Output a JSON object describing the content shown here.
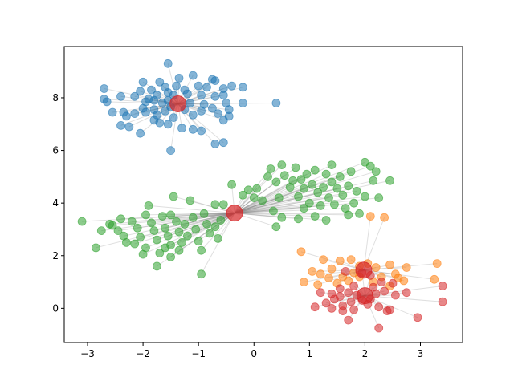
{
  "chart_data": {
    "type": "scatter",
    "title": "",
    "xlabel": "",
    "ylabel": "",
    "xlim": [
      -3.42,
      3.76
    ],
    "ylim": [
      -1.3,
      9.95
    ],
    "grid": false,
    "legend": null,
    "xticks": [
      -3,
      -2,
      -1,
      0,
      1,
      2,
      3
    ],
    "yticks": [
      0,
      2,
      4,
      6,
      8
    ],
    "xtick_labels": [
      "−3",
      "−2",
      "−1",
      "0",
      "1",
      "2",
      "3"
    ],
    "ytick_labels": [
      "0",
      "2",
      "4",
      "6",
      "8"
    ],
    "link_color": "#808080",
    "series": [
      {
        "color": "#1f77b4",
        "center": [
          -1.37,
          7.77
        ],
        "points": [
          [
            -1.55,
            9.3
          ],
          [
            -2.7,
            8.35
          ],
          [
            -2.0,
            8.6
          ],
          [
            -1.7,
            8.6
          ],
          [
            -1.35,
            8.75
          ],
          [
            -1.1,
            8.85
          ],
          [
            -0.75,
            8.7
          ],
          [
            -0.7,
            8.65
          ],
          [
            -0.4,
            8.45
          ],
          [
            -0.2,
            8.4
          ],
          [
            -2.05,
            8.25
          ],
          [
            -1.85,
            8.3
          ],
          [
            -1.6,
            8.4
          ],
          [
            -1.4,
            8.45
          ],
          [
            -1.25,
            8.3
          ],
          [
            -1.0,
            8.45
          ],
          [
            -0.85,
            8.4
          ],
          [
            -0.55,
            8.35
          ],
          [
            -2.4,
            8.05
          ],
          [
            -2.15,
            8.05
          ],
          [
            -1.9,
            7.95
          ],
          [
            -1.75,
            8.1
          ],
          [
            -1.55,
            8.2
          ],
          [
            -1.45,
            8.1
          ],
          [
            -1.2,
            8.15
          ],
          [
            -0.95,
            8.1
          ],
          [
            -0.7,
            8.05
          ],
          [
            -0.55,
            8.1
          ],
          [
            -2.7,
            7.95
          ],
          [
            -2.65,
            7.85
          ],
          [
            -1.95,
            7.85
          ],
          [
            -1.8,
            7.9
          ],
          [
            -1.65,
            7.8
          ],
          [
            -1.55,
            7.9
          ],
          [
            -1.15,
            7.8
          ],
          [
            -0.9,
            7.75
          ],
          [
            -0.5,
            7.8
          ],
          [
            -0.2,
            7.8
          ],
          [
            0.4,
            7.8
          ],
          [
            -2.0,
            7.6
          ],
          [
            -1.8,
            7.55
          ],
          [
            -1.6,
            7.5
          ],
          [
            -1.5,
            7.65
          ],
          [
            -1.25,
            7.55
          ],
          [
            -0.75,
            7.6
          ],
          [
            -0.45,
            7.55
          ],
          [
            -2.55,
            7.45
          ],
          [
            -2.35,
            7.45
          ],
          [
            -2.15,
            7.4
          ],
          [
            -1.95,
            7.45
          ],
          [
            -1.75,
            7.35
          ],
          [
            -1.45,
            7.25
          ],
          [
            -1.1,
            7.35
          ],
          [
            -0.95,
            7.5
          ],
          [
            -0.65,
            7.4
          ],
          [
            -0.55,
            7.15
          ],
          [
            -0.45,
            7.3
          ],
          [
            -2.3,
            7.3
          ],
          [
            -1.8,
            7.15
          ],
          [
            -2.4,
            6.95
          ],
          [
            -2.25,
            6.9
          ],
          [
            -2.05,
            6.65
          ],
          [
            -1.7,
            7.05
          ],
          [
            -1.55,
            7.0
          ],
          [
            -1.3,
            6.85
          ],
          [
            -1.1,
            6.8
          ],
          [
            -0.95,
            6.75
          ],
          [
            -0.7,
            6.25
          ],
          [
            -0.55,
            6.3
          ],
          [
            -1.5,
            6.0
          ]
        ]
      },
      {
        "color": "#2ca02c",
        "center": [
          -0.35,
          3.62
        ],
        "points": [
          [
            -3.1,
            3.3
          ],
          [
            -2.85,
            2.3
          ],
          [
            -2.75,
            2.95
          ],
          [
            -2.6,
            3.2
          ],
          [
            -2.55,
            3.15
          ],
          [
            -2.4,
            3.4
          ],
          [
            -2.35,
            2.75
          ],
          [
            -2.3,
            2.5
          ],
          [
            -2.2,
            3.3
          ],
          [
            -2.1,
            3.05
          ],
          [
            -2.05,
            2.7
          ],
          [
            -1.95,
            3.55
          ],
          [
            -1.95,
            2.3
          ],
          [
            -1.9,
            3.9
          ],
          [
            -1.85,
            3.25
          ],
          [
            -1.8,
            2.95
          ],
          [
            -1.75,
            2.6
          ],
          [
            -1.7,
            2.1
          ],
          [
            -1.65,
            3.5
          ],
          [
            -1.6,
            3.05
          ],
          [
            -1.55,
            2.75
          ],
          [
            -1.5,
            2.4
          ],
          [
            -1.5,
            3.55
          ],
          [
            -1.45,
            4.25
          ],
          [
            -1.4,
            3.3
          ],
          [
            -1.35,
            2.9
          ],
          [
            -1.3,
            2.5
          ],
          [
            -1.25,
            3.2
          ],
          [
            -1.2,
            2.75
          ],
          [
            -1.15,
            4.1
          ],
          [
            -1.1,
            3.45
          ],
          [
            -1.05,
            3.0
          ],
          [
            -1.0,
            2.55
          ],
          [
            -0.95,
            2.2
          ],
          [
            -0.9,
            3.6
          ],
          [
            -0.85,
            3.2
          ],
          [
            -0.8,
            2.85
          ],
          [
            -0.7,
            3.1
          ],
          [
            -0.65,
            2.65
          ],
          [
            -0.6,
            3.35
          ],
          [
            -1.75,
            1.6
          ],
          [
            -1.5,
            1.95
          ],
          [
            -1.35,
            2.2
          ],
          [
            -0.95,
            1.3
          ],
          [
            -2.0,
            2.05
          ],
          [
            -2.15,
            2.45
          ],
          [
            -1.6,
            2.3
          ],
          [
            -2.45,
            2.95
          ],
          [
            -0.55,
            3.95
          ],
          [
            -0.4,
            4.7
          ],
          [
            -0.2,
            4.3
          ],
          [
            -0.1,
            4.5
          ],
          [
            0.0,
            4.2
          ],
          [
            0.05,
            4.55
          ],
          [
            0.15,
            4.1
          ],
          [
            0.25,
            5.0
          ],
          [
            0.3,
            5.3
          ],
          [
            0.4,
            4.8
          ],
          [
            0.45,
            4.2
          ],
          [
            0.5,
            5.45
          ],
          [
            0.55,
            5.05
          ],
          [
            0.65,
            4.6
          ],
          [
            0.7,
            4.85
          ],
          [
            0.75,
            5.35
          ],
          [
            0.8,
            4.25
          ],
          [
            0.85,
            4.9
          ],
          [
            0.9,
            4.55
          ],
          [
            0.95,
            5.1
          ],
          [
            1.0,
            4.0
          ],
          [
            1.05,
            4.7
          ],
          [
            1.1,
            5.25
          ],
          [
            1.15,
            4.4
          ],
          [
            1.2,
            3.9
          ],
          [
            1.25,
            4.6
          ],
          [
            1.3,
            5.1
          ],
          [
            1.35,
            4.2
          ],
          [
            1.4,
            4.8
          ],
          [
            1.45,
            3.95
          ],
          [
            1.5,
            4.55
          ],
          [
            1.55,
            5.0
          ],
          [
            1.6,
            4.3
          ],
          [
            1.65,
            3.8
          ],
          [
            1.7,
            4.65
          ],
          [
            1.75,
            5.2
          ],
          [
            1.8,
            4.0
          ],
          [
            1.85,
            4.45
          ],
          [
            1.9,
            3.6
          ],
          [
            2.0,
            4.25
          ],
          [
            2.1,
            5.4
          ],
          [
            2.15,
            4.85
          ],
          [
            2.25,
            4.2
          ],
          [
            2.45,
            4.85
          ],
          [
            2.2,
            5.2
          ],
          [
            1.3,
            3.35
          ],
          [
            1.1,
            3.5
          ],
          [
            0.8,
            3.4
          ],
          [
            0.5,
            3.45
          ],
          [
            0.4,
            3.1
          ],
          [
            0.35,
            3.7
          ],
          [
            -0.7,
            3.95
          ],
          [
            1.7,
            3.55
          ],
          [
            2.0,
            5.55
          ],
          [
            0.9,
            3.8
          ],
          [
            1.4,
            5.45
          ]
        ]
      },
      {
        "color": "#ff7f0e",
        "center": [
          1.98,
          1.45
        ],
        "points": [
          [
            2.1,
            3.5
          ],
          [
            2.35,
            3.45
          ],
          [
            0.85,
            2.15
          ],
          [
            1.25,
            1.85
          ],
          [
            1.55,
            1.8
          ],
          [
            1.75,
            1.85
          ],
          [
            1.9,
            1.6
          ],
          [
            2.05,
            1.7
          ],
          [
            2.2,
            1.55
          ],
          [
            2.45,
            1.65
          ],
          [
            2.75,
            1.55
          ],
          [
            3.3,
            1.7
          ],
          [
            0.9,
            1.0
          ],
          [
            1.05,
            1.4
          ],
          [
            1.2,
            1.3
          ],
          [
            1.35,
            1.15
          ],
          [
            1.4,
            1.5
          ],
          [
            1.6,
            1.2
          ],
          [
            1.7,
            1.05
          ],
          [
            1.8,
            1.35
          ],
          [
            2.3,
            1.2
          ],
          [
            2.55,
            1.3
          ],
          [
            2.7,
            1.05
          ],
          [
            3.25,
            1.1
          ],
          [
            1.15,
            0.9
          ],
          [
            1.5,
            0.95
          ],
          [
            2.15,
            1.0
          ],
          [
            2.45,
            0.85
          ],
          [
            2.6,
            1.15
          ],
          [
            1.9,
            1.2
          ]
        ]
      },
      {
        "color": "#d62728",
        "center": [
          2.0,
          0.48
        ],
        "points": [
          [
            1.65,
            1.4
          ],
          [
            1.95,
            1.35
          ],
          [
            2.1,
            1.25
          ],
          [
            2.3,
            1.0
          ],
          [
            2.5,
            0.95
          ],
          [
            3.4,
            0.85
          ],
          [
            1.2,
            0.6
          ],
          [
            1.4,
            0.55
          ],
          [
            1.55,
            0.75
          ],
          [
            1.7,
            0.6
          ],
          [
            1.8,
            0.85
          ],
          [
            1.85,
            0.5
          ],
          [
            2.15,
            0.8
          ],
          [
            2.2,
            0.55
          ],
          [
            2.35,
            0.65
          ],
          [
            2.55,
            0.5
          ],
          [
            2.75,
            0.6
          ],
          [
            3.4,
            0.25
          ],
          [
            1.3,
            0.2
          ],
          [
            1.45,
            0.35
          ],
          [
            1.6,
            0.1
          ],
          [
            1.75,
            0.25
          ],
          [
            1.95,
            0.3
          ],
          [
            2.05,
            0.15
          ],
          [
            2.25,
            0.05
          ],
          [
            2.45,
            -0.05
          ],
          [
            1.1,
            0.05
          ],
          [
            1.4,
            0.0
          ],
          [
            1.6,
            -0.1
          ],
          [
            1.8,
            -0.05
          ],
          [
            2.4,
            -0.1
          ],
          [
            1.7,
            -0.45
          ],
          [
            2.25,
            -0.75
          ],
          [
            2.95,
            -0.35
          ],
          [
            2.1,
            0.35
          ],
          [
            1.55,
            0.45
          ]
        ]
      }
    ]
  }
}
